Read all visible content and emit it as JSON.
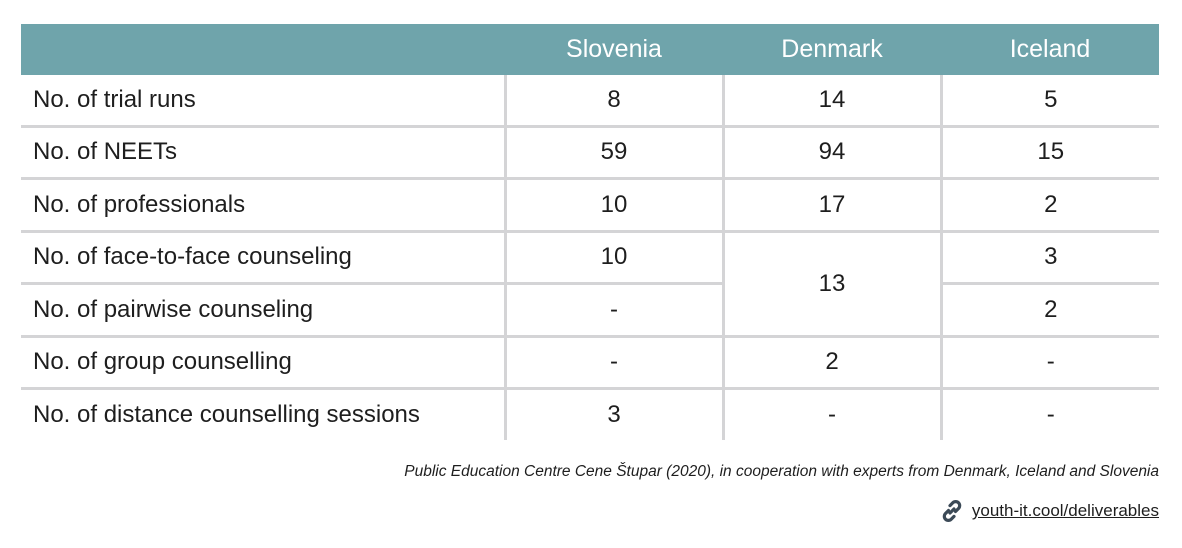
{
  "table": {
    "headers": [
      "",
      "Slovenia",
      "Denmark",
      "Iceland"
    ],
    "rows": [
      {
        "label": "No. of trial runs",
        "slovenia": "8",
        "denmark": "14",
        "iceland": "5"
      },
      {
        "label": "No. of NEETs",
        "slovenia": "59",
        "denmark": "94",
        "iceland": "15"
      },
      {
        "label": "No. of professionals",
        "slovenia": "10",
        "denmark": "17",
        "iceland": "2"
      },
      {
        "label": "No. of face-to-face counseling",
        "slovenia": "10",
        "denmark": "13",
        "iceland": "3"
      },
      {
        "label": "No. of pairwise counseling",
        "slovenia": "-",
        "denmark": "",
        "iceland": "2"
      },
      {
        "label": "No. of group counselling",
        "slovenia": "-",
        "denmark": "2",
        "iceland": "-"
      },
      {
        "label": "No. of distance counselling sessions",
        "slovenia": "3",
        "denmark": "-",
        "iceland": "-"
      }
    ]
  },
  "caption": "Public Education Centre Cene Štupar (2020), in cooperation with experts from Denmark, Iceland and Slovenia",
  "link": {
    "icon": "link-icon",
    "text": "youth-it.cool/deliverables"
  },
  "colors": {
    "header_bg": "#6fa4ab",
    "grid": "#d4d4d6",
    "text": "#1e1e1e"
  }
}
